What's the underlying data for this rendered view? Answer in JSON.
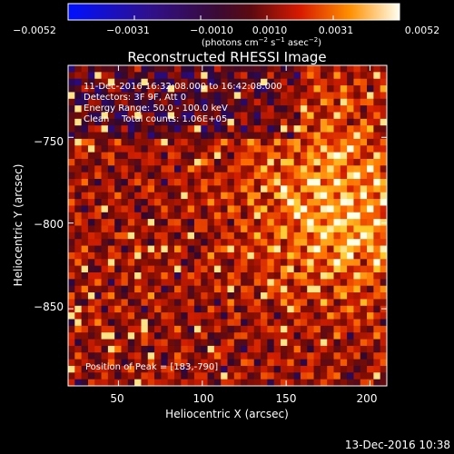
{
  "colorbar": {
    "tick_labels": [
      "−0.0052",
      "−0.0031",
      "−0.0010",
      "0.0010",
      "0.0031",
      "0.0052"
    ],
    "min": -0.0052,
    "max": 0.0052,
    "units_main": "(photons cm",
    "units_sup1": "−2",
    "units_mid": " s",
    "units_sup2": "−1",
    "units_end": " asec",
    "units_sup3": "−2",
    "units_close": ")"
  },
  "chart_data": {
    "type": "heatmap",
    "title": "Reconstructed RHESSI Image",
    "xlabel": "Heliocentric X (arcsec)",
    "ylabel": "Heliocentric Y (arcsec)",
    "xlim": [
      20,
      210
    ],
    "ylim": [
      -895,
      -708
    ],
    "x_ticks": [
      50,
      100,
      150,
      200
    ],
    "x_tick_labels": [
      "50",
      "100",
      "150",
      "200"
    ],
    "y_ticks": [
      -750,
      -800,
      -850
    ],
    "y_tick_labels": [
      "−750",
      "−800",
      "−850"
    ],
    "peak": [
      183,
      -790
    ],
    "annotations": {
      "time_range": "11-Dec-2016 16:32:08.000 to 16:42:08.000",
      "detectors": "Detectors: 3F 9F, Att 0",
      "energy": "Energy Range: 50.0 - 100.0 keV",
      "clean_label": "Clean",
      "counts": "Total counts: 1.06E+05",
      "peak_label": "Position of Peak = [183,-790]"
    }
  },
  "footer": {
    "date": "13-Dec-2016 10:38"
  }
}
